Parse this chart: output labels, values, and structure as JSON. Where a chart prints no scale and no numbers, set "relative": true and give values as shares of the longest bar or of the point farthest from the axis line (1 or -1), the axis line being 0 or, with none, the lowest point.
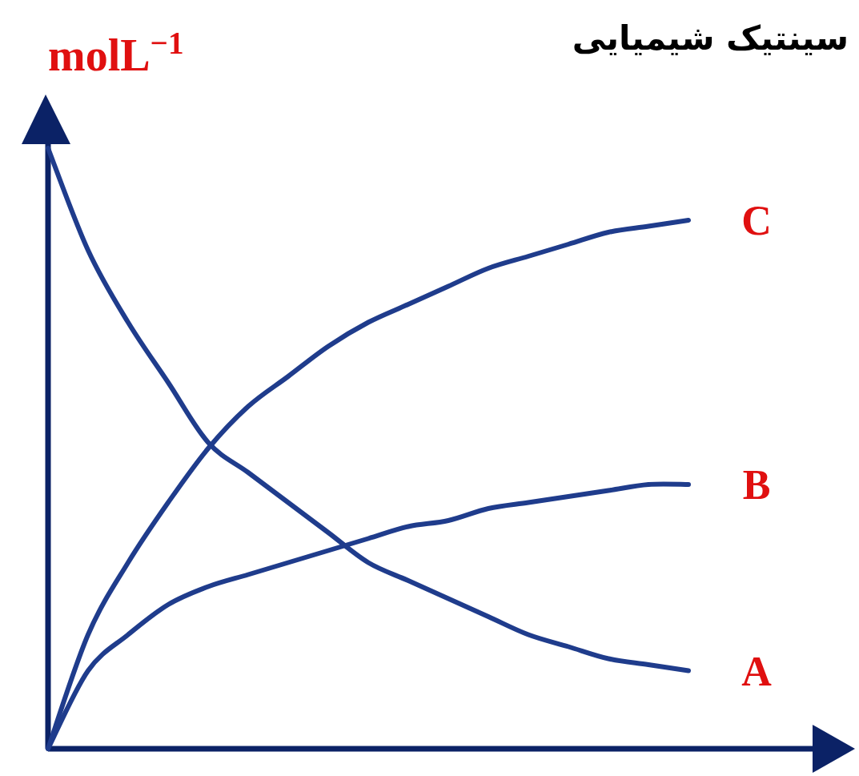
{
  "chart_data": {
    "type": "line",
    "title": "سینتیک شیمیایی",
    "ylabel": "molL$^{−1}$",
    "relative": true,
    "categories": [
      null,
      null,
      null,
      null,
      null,
      null,
      null,
      null,
      null,
      null,
      null,
      null,
      null,
      null,
      null,
      null,
      null
    ],
    "series": [
      {
        "name": "A",
        "color": "#1f3c8c",
        "values": [
          1.0,
          0.83,
          0.71,
          0.61,
          0.51,
          0.46,
          0.41,
          0.36,
          0.31,
          0.28,
          0.25,
          0.22,
          0.19,
          0.17,
          0.15,
          0.14,
          0.13
        ]
      },
      {
        "name": "B",
        "color": "#1f3c8c",
        "values": [
          0,
          0.13,
          0.19,
          0.24,
          0.27,
          0.29,
          0.31,
          0.33,
          0.35,
          0.37,
          0.38,
          0.4,
          0.41,
          0.42,
          0.43,
          0.44,
          0.44
        ]
      },
      {
        "name": "C",
        "color": "#1f3c8c",
        "values": [
          0,
          0.19,
          0.31,
          0.41,
          0.5,
          0.57,
          0.62,
          0.67,
          0.71,
          0.74,
          0.77,
          0.8,
          0.82,
          0.84,
          0.86,
          0.87,
          0.88
        ]
      }
    ]
  }
}
